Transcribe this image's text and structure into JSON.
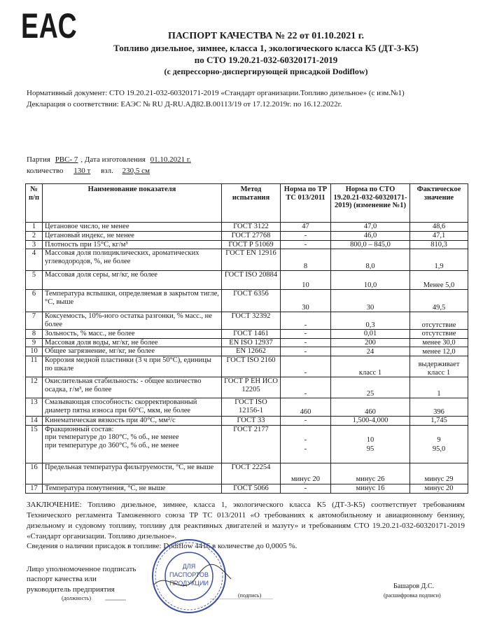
{
  "logo": "ЕАС",
  "header": {
    "title": "ПАСПОРТ КАЧЕСТВА № 22 от 01.10.2021 г.",
    "lines": [
      "Топливо дизельное, зимнее, класса 1, экологического класса К5 (ДТ-3-К5)",
      "по СТО 19.20.21-032-60320171-2019",
      "(с депрессорно-диспергирующей присадкой Dodiflow)"
    ]
  },
  "normative": "Нормативный документ: СТО 19.20.21-032-60320171-2019 «Стандарт организации.Топливо дизельное» (с изм.№1)",
  "declaration": "Декларация о соответствии: ЕАЭС № RU Д-RU.АД82.В.00113/19 от 17.12.2019г. по 16.12.2022г.",
  "batch": {
    "party_label": "Партия",
    "party": "РВС- 7",
    "date_label": ", Дата изготовления",
    "date": "01.10.2021 г.",
    "qty_label": "количество",
    "qty": "130 т",
    "level_label": "взл.",
    "level": "230,5 см"
  },
  "table": {
    "header": [
      "№ п/п",
      "Наименование показателя",
      "Метод испытания",
      "Норма по ТР ТС 013/2011",
      "Норма по СТО 19.20.21-032-60320171-2019) (изменение №1)",
      "Фактическое значение"
    ],
    "rows": [
      [
        "1",
        "Цетановое число, не менее",
        "ГОСТ 3122",
        "47",
        "47,0",
        "48,6"
      ],
      [
        "2",
        "Цетановый индекс, не менее",
        "ГОСТ 27768",
        "-",
        "46,0",
        "47,1"
      ],
      [
        "3",
        "Плотность при 15°С, кг/м³",
        "ГОСТ Р 51069",
        "-",
        "800,0 – 845,0",
        "810,3"
      ],
      [
        "4",
        "Массовая доля полициклических, ароматических углеводородов, %, не более",
        "ГОСТ EN 12916",
        "8",
        "8,0",
        "1,9"
      ],
      [
        "5",
        "Массовая доля серы, мг/кг, не более",
        "ГОСТ ISO 20884",
        "10",
        "10,0",
        "Менее 5,0"
      ],
      [
        "6",
        "Температура вспышки, определяемая в закрытом тигле, °С, выше",
        "ГОСТ 6356",
        "30",
        "30",
        "49,5"
      ],
      [
        "7",
        "Коксуемость, 10%-ного остатка разгонки, % масс., не более",
        "ГОСТ 32392",
        "-",
        "0,3",
        "отсутствие"
      ],
      [
        "8",
        "Зольность, % масс., не более",
        "ГОСТ 1461",
        "-",
        "0,01",
        "отсутствие"
      ],
      [
        "9",
        "Массовая доля воды, мг/кг, не более",
        "EN ISO 12937",
        "-",
        "200",
        "менее 30,0"
      ],
      [
        "10",
        "Общее загрязнение, мг/кг, не более",
        "EN 12662",
        "-",
        "24",
        "менее 12,0"
      ],
      [
        "11",
        "Коррозия медной пластинки (3 ч при 50°С), единицы по шкале",
        "ГОСТ ISO 2160",
        "-",
        "класс 1",
        "выдерживает класс 1"
      ],
      [
        "12",
        "Окислительная стабильность: - общее количество осадка, г/м³, не более",
        "ГОСТ Р ЕН ИСО 12205",
        "-",
        "25",
        "1"
      ],
      [
        "13",
        "Смазывающая способность: скорректированный диаметр пятна износа при 60°С, мкм, не более",
        "ГОСТ ISO 12156-1",
        "460",
        "460",
        "396"
      ],
      [
        "14",
        "Кинематическая вязкость при 40°С, мм²/с",
        "ГОСТ 33",
        "-",
        "1,500-4,000",
        "1,745"
      ],
      [
        "15",
        [
          "Фракционный состав:",
          "при температуре до 180°С, % об., не менее",
          "при температуре до 360°С, % об., не менее"
        ],
        "ГОСТ 2177",
        [
          "-",
          "-"
        ],
        [
          "10",
          "95"
        ],
        [
          "9",
          "95,0"
        ]
      ],
      [
        "16",
        "Предельная температура фильтруемости, °С, не выше",
        "ГОСТ 22254",
        "минус 20",
        "минус 26",
        "минус 29"
      ],
      [
        "17",
        "Температура помутнения, °С, не выше",
        "ГОСТ 5066",
        "-",
        "минус 16",
        "минус 20"
      ]
    ]
  },
  "conclusion": "ЗАКЛЮЧЕНИЕ: Топливо дизельное, зимнее, класса 1, экологического класса К5 (ДТ-3-К5) соответствует требованиям Технического регламента Таможенного союза ТР ТС 013/2011 «О требованиях к автомобильному и авиационному бензину, дизельному и судовому топливу, топливу для реактивных двигателей и мазуту» и требованиям СТО 19.20.21-032-60320171-2019 «Стандарт организации. Топливо дизельное».",
  "additives": "Сведения о наличии присадок в топливе: Dodiflow 4416 в количестве до 0,0005 %.",
  "signature": {
    "lines": [
      "Лицо уполномоченное подписать",
      "паспорт качества или",
      "руководитель предприятия"
    ],
    "position_caption": "(должность)",
    "sign_caption": "(подпись)",
    "name": "Башаров Д.С.",
    "name_caption": "(расшифровка подписи)",
    "stamp": [
      "ДЛЯ",
      "ПАСПОРТОВ",
      "ПРОДУКЦИИ"
    ]
  }
}
